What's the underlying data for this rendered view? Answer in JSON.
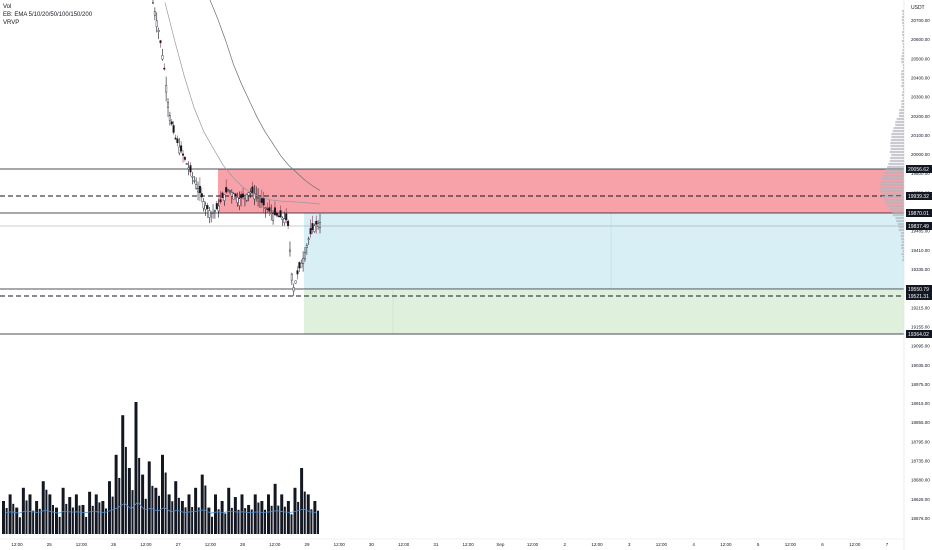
{
  "legend": {
    "vol": "Vol",
    "ema": "EB: EMA 5/10/20/50/100/150/200",
    "vrvp": "VRVP"
  },
  "axis": {
    "currency": "USDT",
    "price_ticks": [
      "20700.00",
      "20600.00",
      "20500.00",
      "20400.00",
      "20300.00",
      "20200.00",
      "20100.00",
      "20000.00",
      "19800.00",
      "19720.00",
      "19640.00",
      "19485.00",
      "19410.00",
      "19335.00",
      "19275.00",
      "19215.00",
      "19155.00",
      "19095.00",
      "19035.00",
      "18975.00",
      "18915.00",
      "18855.00",
      "18795.00",
      "18735.00",
      "18680.00",
      "18628.00",
      "18576.00"
    ],
    "time_ticks": [
      "12:00",
      "25",
      "12:00",
      "26",
      "12:00",
      "27",
      "12:00",
      "28",
      "12:00",
      "29",
      "12:00",
      "30",
      "12:00",
      "31",
      "12:00",
      "Sep",
      "12:00",
      "2",
      "12:00",
      "3",
      "12:00",
      "4",
      "12:00",
      "5",
      "12:00",
      "6",
      "12:00",
      "7"
    ]
  },
  "levels": {
    "upper_top": "20056.62",
    "upper_dash": "19939.32",
    "entry": "19870.01",
    "current": "19837.49",
    "lower": "19550.79",
    "lower_dash": "19521.31",
    "bottom": "19364.02"
  },
  "colors": {
    "red_zone": "#f7a1a8",
    "blue_zone": "#d8f0f5",
    "green_zone": "#dff0dc",
    "vol_ma": "#4a90d9",
    "candle": "#131722",
    "label_bg": "#131722"
  },
  "chart_data": {
    "type": "candlestick",
    "y_range": [
      18540,
      20770
    ],
    "price_path": [
      20760,
      20650,
      20500,
      20300,
      20200,
      20150,
      20100,
      20050,
      20000,
      19950,
      19900,
      19880,
      19900,
      19950,
      19980,
      19960,
      19940,
      19950,
      19970,
      19960,
      19930,
      19900,
      19880,
      19870,
      19860,
      19850,
      19560,
      19640,
      19700,
      19780,
      19830,
      19840
    ],
    "ema_fast_path": [
      20760,
      20600,
      20450,
      20320,
      20220,
      20150,
      20080,
      20030,
      19990,
      19960,
      19945,
      19935,
      19930,
      19928,
      19925,
      19922,
      19918
    ],
    "ema_slow_path": [
      20770,
      20690,
      20600,
      20500,
      20420,
      20350,
      20280,
      20220,
      20170,
      20120,
      20080,
      20050,
      20020,
      19995,
      19975
    ],
    "volume_relative": [
      0.25,
      0.3,
      0.2,
      0.35,
      0.3,
      0.25,
      0.4,
      0.3,
      0.2,
      0.35,
      0.28,
      0.3,
      0.22,
      0.32,
      0.3,
      0.25,
      0.4,
      0.6,
      0.9,
      0.5,
      1.0,
      0.45,
      0.55,
      0.35,
      0.6,
      0.3,
      0.4,
      0.25,
      0.3,
      0.35,
      0.45,
      0.2,
      0.3,
      0.25,
      0.35,
      0.28,
      0.3,
      0.22,
      0.3,
      0.25,
      0.3,
      0.38,
      0.3,
      0.25,
      0.35,
      0.5,
      0.3,
      0.25
    ]
  }
}
